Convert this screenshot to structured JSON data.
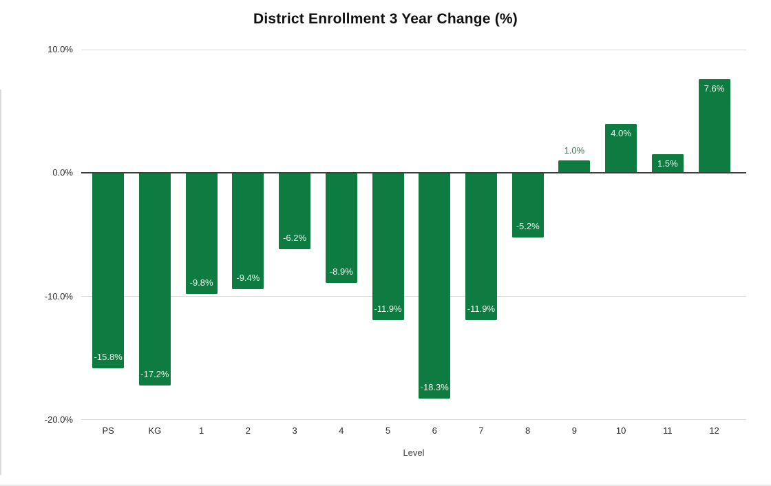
{
  "chart_data": {
    "type": "bar",
    "title": "District Enrollment 3 Year Change (%)",
    "xlabel": "Level",
    "ylabel": "",
    "categories": [
      "PS",
      "KG",
      "1",
      "2",
      "3",
      "4",
      "5",
      "6",
      "7",
      "8",
      "9",
      "10",
      "11",
      "12"
    ],
    "values": [
      -15.8,
      -17.2,
      -9.8,
      -9.4,
      -6.2,
      -8.9,
      -11.9,
      -18.3,
      -11.9,
      -5.2,
      1.0,
      4.0,
      1.5,
      7.6
    ],
    "bar_labels": [
      "-15.8%",
      "-17.2%",
      "-9.8%",
      "-9.4%",
      "-6.2%",
      "-8.9%",
      "-11.9%",
      "-18.3%",
      "-11.9%",
      "-5.2%",
      "1.0%",
      "4.0%",
      "1.5%",
      "7.6%"
    ],
    "ylim": [
      -20,
      10
    ],
    "yticks": [
      {
        "value": 10,
        "label": "10.0%"
      },
      {
        "value": 0,
        "label": "0.0%"
      },
      {
        "value": -10,
        "label": "-10.0%"
      },
      {
        "value": -20,
        "label": "-20.0%"
      }
    ],
    "grid": true,
    "legend_position": "none",
    "colors": {
      "bar": "#0e7c40",
      "label_inside": "#f0f4f0",
      "label_outside": "#3e6f54",
      "grid_line": "#d9d9d9",
      "zero_line": "#3f3f3f",
      "tick_text": "#2b2b2b",
      "axis_title_text": "#3c3c3c",
      "title_text": "#101010"
    }
  }
}
